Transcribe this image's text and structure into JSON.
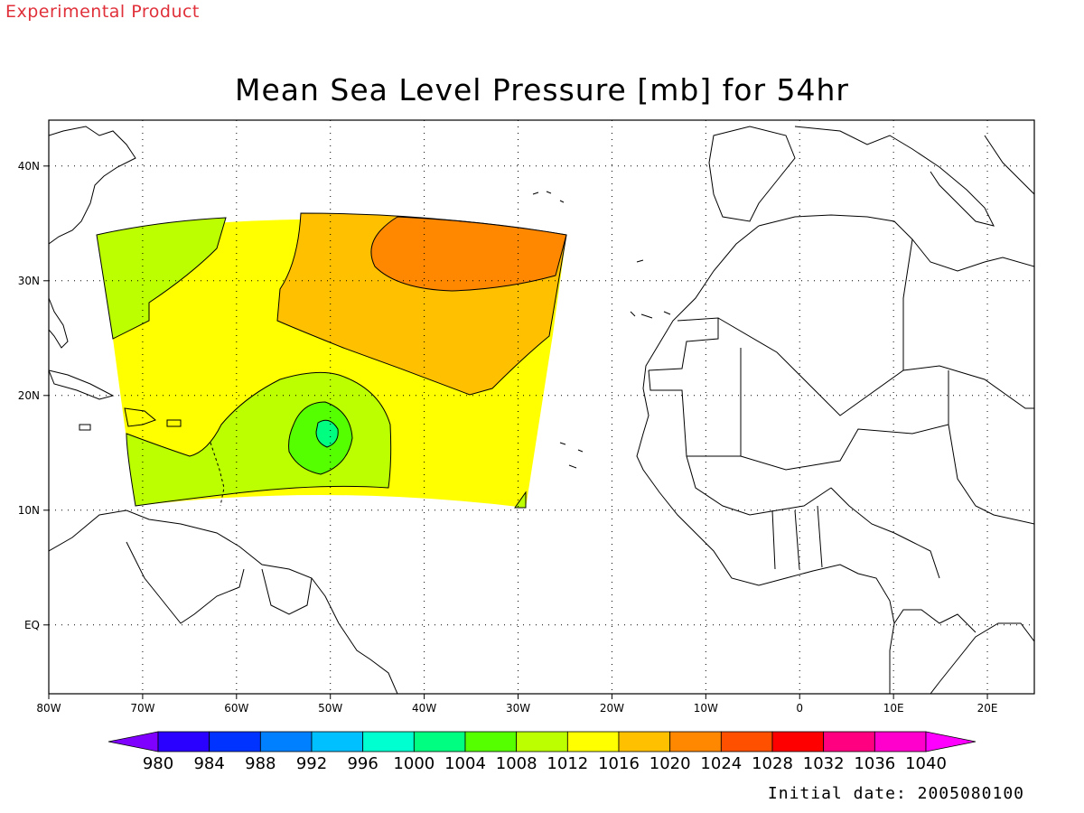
{
  "header": {
    "experimental": "Experimental Product",
    "title": "Mean Sea Level Pressure [mb] for 54hr"
  },
  "footer": {
    "initial_date": "Initial date: 2005080100"
  },
  "map": {
    "lon_range": [
      -80,
      25
    ],
    "lat_range": [
      -6,
      44
    ],
    "lon_ticks": [
      "80W",
      "70W",
      "60W",
      "50W",
      "40W",
      "30W",
      "20W",
      "10W",
      "0",
      "10E",
      "20E"
    ],
    "lat_ticks": [
      "EQ",
      "10N",
      "20N",
      "30N",
      "40N"
    ],
    "grid": "dotted",
    "field_lon_range": [
      -75,
      -25
    ],
    "field_lat_range": [
      11,
      37
    ],
    "pressure_features": [
      {
        "name": "high",
        "approx_lon": -40,
        "approx_lat": 33,
        "approx_value_mb": 1024
      },
      {
        "name": "low",
        "approx_lon": -51,
        "approx_lat": 18,
        "approx_value_mb": 1000
      }
    ]
  },
  "colorbar": {
    "labels": [
      "980",
      "984",
      "988",
      "992",
      "996",
      "1000",
      "1004",
      "1008",
      "1012",
      "1016",
      "1020",
      "1024",
      "1028",
      "1032",
      "1036",
      "1040"
    ],
    "colors": [
      "#7f00ff",
      "#2a00ff",
      "#0033ff",
      "#0080ff",
      "#00c0ff",
      "#00ffd0",
      "#00ff80",
      "#55ff00",
      "#bbff00",
      "#ffff00",
      "#ffc000",
      "#ff8800",
      "#ff5000",
      "#ff0000",
      "#ff0080",
      "#ff00cc",
      "#ff00ff"
    ]
  },
  "field_colors": {
    "band_1004": "#55ff00",
    "band_1008": "#bbff00",
    "band_1012": "#ffff00",
    "band_1016": "#ffc000",
    "band_1020": "#ff8800",
    "band_1000": "#00ff80"
  }
}
